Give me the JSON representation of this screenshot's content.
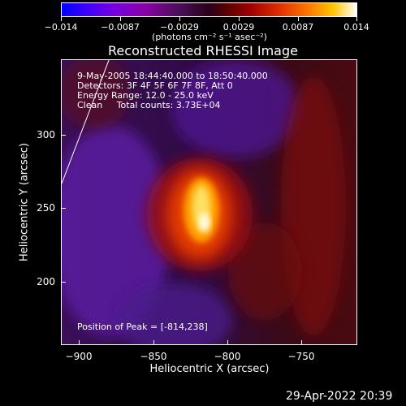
{
  "colorbar": {
    "tick_labels": [
      "−0.014",
      "−0.0087",
      "−0.0029",
      "0.0029",
      "0.0087",
      "0.014"
    ],
    "units": "(photons cm⁻² s⁻¹ asec⁻²)"
  },
  "plot": {
    "title": "Reconstructed RHESSI Image",
    "info_lines": [
      "9-May-2005 18:44:40.000 to 18:50:40.000",
      "Detectors: 3F 4F 5F 6F 7F 8F, Att 0",
      "Energy Range: 12.0 - 25.0 keV",
      "Clean     Total counts: 3.73E+04"
    ],
    "peak_text": "Position of Peak = [-814,238]",
    "x_axis": {
      "title": "Heliocentric X (arcsec)",
      "tick_labels": [
        "−900",
        "−850",
        "−800",
        "−750"
      ]
    },
    "y_axis": {
      "title": "Heliocentric Y (arcsec)",
      "tick_labels": [
        "300",
        "250",
        "200"
      ]
    }
  },
  "footer": {
    "timestamp": "29-Apr-2022 20:39"
  },
  "colors": {
    "background": "#000000",
    "foreground": "#ffffff"
  }
}
